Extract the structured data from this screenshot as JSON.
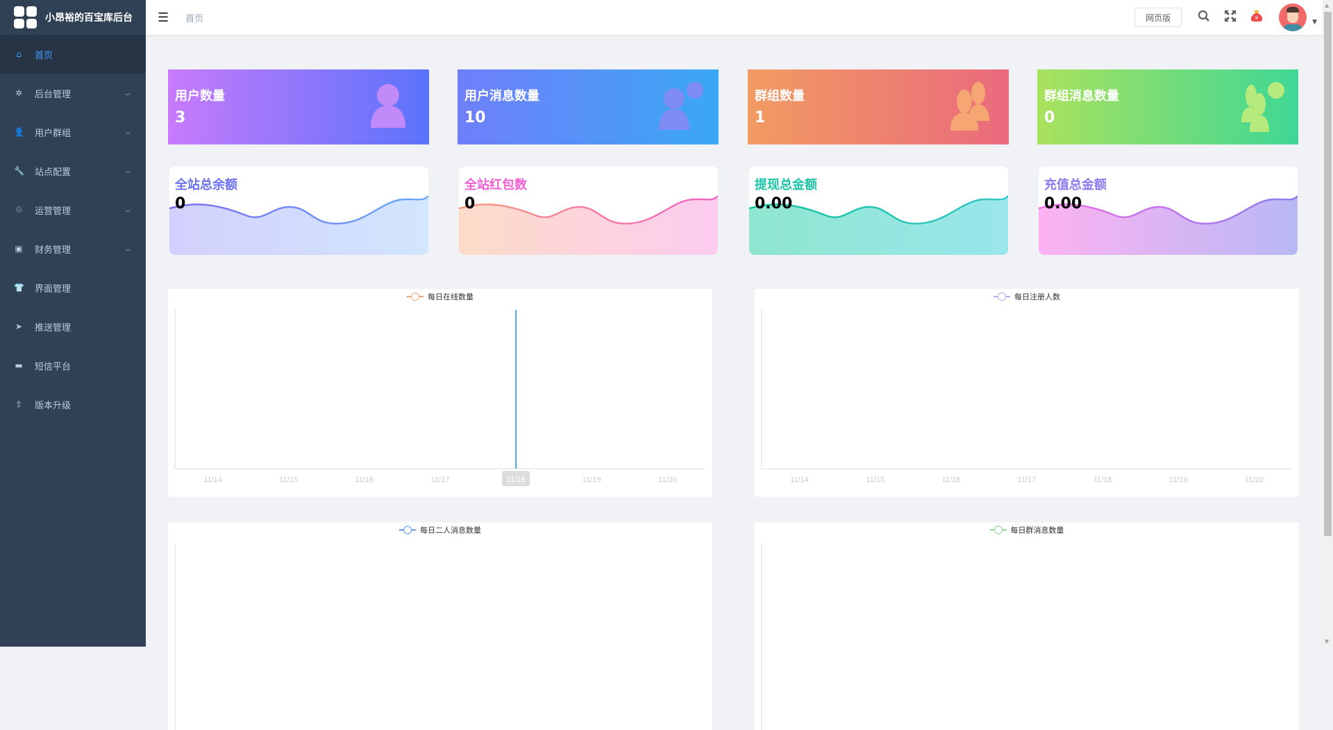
{
  "app": {
    "title": "小昂裕的百宝库后台"
  },
  "sidebar": {
    "items": [
      {
        "label": "首页",
        "icon": "home-icon",
        "active": true
      },
      {
        "label": "后台管理",
        "icon": "gear-icon",
        "expandable": true
      },
      {
        "label": "用户群组",
        "icon": "user-group-icon",
        "expandable": true
      },
      {
        "label": "站点配置",
        "icon": "wrench-icon",
        "expandable": true
      },
      {
        "label": "运营管理",
        "icon": "operations-icon",
        "expandable": true
      },
      {
        "label": "财务管理",
        "icon": "wallet-icon",
        "expandable": true
      },
      {
        "label": "界面管理",
        "icon": "shirt-icon"
      },
      {
        "label": "推送管理",
        "icon": "send-icon"
      },
      {
        "label": "短信平台",
        "icon": "message-icon"
      },
      {
        "label": "版本升级",
        "icon": "upload-icon"
      }
    ]
  },
  "header": {
    "breadcrumb": "首页",
    "web_button": "网页版",
    "icons": [
      "search-icon",
      "fullscreen-icon",
      "money-bag-icon"
    ],
    "money_symbol": "¥"
  },
  "stats": [
    {
      "title": "用户数量",
      "value": "3",
      "icon": "user-icon",
      "gradient": [
        "#c77bfb",
        "#5a73fb"
      ]
    },
    {
      "title": "用户消息数量",
      "value": "10",
      "icon": "user-message-icon",
      "gradient": [
        "#6f7efa",
        "#3aa8f4"
      ]
    },
    {
      "title": "群组数量",
      "value": "1",
      "icon": "group-icon",
      "gradient": [
        "#f29b62",
        "#ea6a7d"
      ]
    },
    {
      "title": "群组消息数量",
      "value": "0",
      "icon": "group-message-icon",
      "gradient": [
        "#a9e25d",
        "#3fd795"
      ]
    }
  ],
  "finance": [
    {
      "title": "全站总余额",
      "value": "0",
      "color": "#6a72f2",
      "line": [
        "#7a6ef0",
        "#6aaaf8"
      ],
      "fill": [
        "#d2d0fd",
        "#d2e6fd"
      ]
    },
    {
      "title": "全站红包数",
      "value": "0",
      "color": "#f25fd5",
      "line": [
        "#f59c7c",
        "#f264c8"
      ],
      "fill": [
        "#fcdcc8",
        "#fdccf0"
      ]
    },
    {
      "title": "提现总金额",
      "value": "0.00",
      "color": "#1cc3a6",
      "line": [
        "#16c39e",
        "#32c6c6"
      ],
      "fill": [
        "#8ee6cf",
        "#9ae6ec"
      ]
    },
    {
      "title": "充值总金额",
      "value": "0.00",
      "color": "#8a79f0",
      "line": [
        "#f46ce6",
        "#8a7cf0"
      ],
      "fill": [
        "#fcb2f2",
        "#b8b8f4"
      ]
    }
  ],
  "charts": [
    {
      "legend": "每日在线数量",
      "color": "#f4a57e",
      "type": "line",
      "categories": [
        "11/14",
        "11/15",
        "11/16",
        "11/17",
        "11/18",
        "11/19",
        "11/20"
      ],
      "highlighted": "11/18",
      "pointer_color": "#1a88cc"
    },
    {
      "legend": "每日注册人数",
      "color": "#b9a9f2",
      "type": "line",
      "categories": [
        "11/14",
        "11/15",
        "11/16",
        "11/17",
        "11/18",
        "11/19",
        "11/20"
      ]
    },
    {
      "legend": "每日二人消息数量",
      "color": "#5b9df0",
      "type": "line",
      "categories": []
    },
    {
      "legend": "每日群消息数量",
      "color": "#8ed88e",
      "type": "line",
      "categories": []
    }
  ]
}
